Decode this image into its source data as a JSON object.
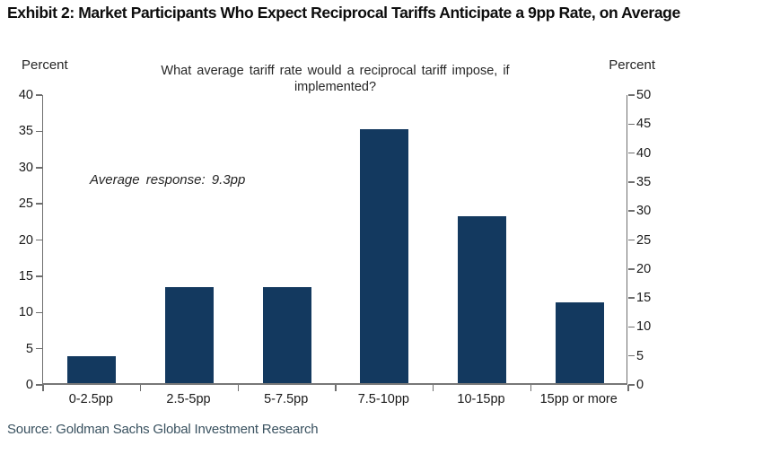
{
  "title": "Exhibit 2: Market Participants Who Expect Reciprocal Tariffs Anticipate a 9pp Rate, on Average",
  "source": "Source: Goldman Sachs Global Investment Research",
  "chart_data": {
    "type": "bar",
    "title": "What average tariff rate would a reciprocal tariff impose, if implemented?",
    "annotation": "Average response: 9.3pp",
    "categories": [
      "0-2.5pp",
      "2.5-5pp",
      "5-7.5pp",
      "7.5-10pp",
      "10-15pp",
      "15pp or more"
    ],
    "values": [
      3.7,
      13.3,
      13.3,
      35,
      23,
      11.1
    ],
    "series_axis": "left",
    "left_axis": {
      "label": "Percent",
      "min": 0,
      "max": 40,
      "step": 5
    },
    "right_axis": {
      "label": "Percent",
      "min": 0,
      "max": 50,
      "step": 5
    },
    "grid": false,
    "legend": false,
    "colors": {
      "bar": "#13395f",
      "axis_line": "#6e6e6e",
      "text": "#1a1a1a",
      "source_text": "#3a5260"
    }
  }
}
